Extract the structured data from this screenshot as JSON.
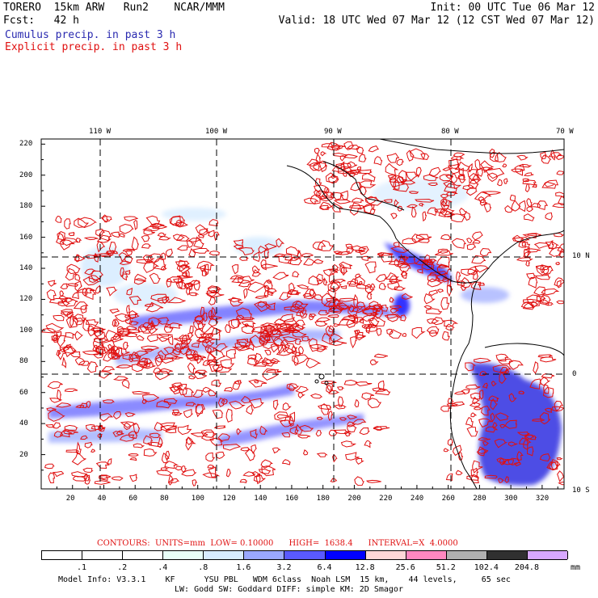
{
  "header": {
    "line1_left": "TORERO  15km ARW   Run2    NCAR/MMM",
    "line1_right": "Init: 00 UTC Tue 06 Mar 12",
    "line2_left": "Fcst:   42 h",
    "line2_right": "Valid: 18 UTC Wed 07 Mar 12 (12 CST Wed 07 Mar 12)",
    "field1": "Cumulus precip. in past 3 h",
    "field2": "Explicit precip. in past 3 h",
    "field1_color": "#2a2ab0",
    "field2_color": "#e01010"
  },
  "map": {
    "top_lon_labels": [
      "110 W",
      "100 W",
      "90 W",
      "80 W",
      "70 W"
    ],
    "right_lat_labels": [
      "10 N",
      "0",
      "10 S"
    ],
    "left_y_ticks": [
      "220",
      "200",
      "180",
      "160",
      "140",
      "120",
      "100",
      "80",
      "60",
      "40",
      "20"
    ],
    "bottom_x_ticks": [
      "20",
      "40",
      "60",
      "80",
      "100",
      "120",
      "140",
      "160",
      "180",
      "200",
      "220",
      "240",
      "260",
      "280",
      "300",
      "320"
    ],
    "contour_color": "#e01010",
    "shading_color": "#3030e0"
  },
  "contours_info": {
    "text": "CONTOURS:  UNITS=mm  LOW= 0.10000      HIGH=  1638.4      INTERVAL=X  4.0000"
  },
  "colorbar": {
    "labels": [
      ".1",
      ".2",
      ".4",
      ".8",
      "1.6",
      "3.2",
      "6.4",
      "12.8",
      "25.6",
      "51.2",
      "102.4",
      "204.8"
    ],
    "unit": "mm",
    "colors": [
      "#ffffff",
      "#ffffff",
      "#ffffff",
      "#e8fff8",
      "#d8ecff",
      "#9aa8ff",
      "#5a5aff",
      "#0000ff",
      "#ffd8d8",
      "#ff88c0",
      "#b0b0b0",
      "#303030",
      "#d8a8ff"
    ]
  },
  "footer": {
    "line1": "Model Info: V3.3.1    KF      YSU PBL   WDM 6class  Noah LSM  15 km,    44 levels,     65 sec",
    "line2": "LW: Godd SW: Goddard DIFF: simple KM: 2D Smagor"
  }
}
